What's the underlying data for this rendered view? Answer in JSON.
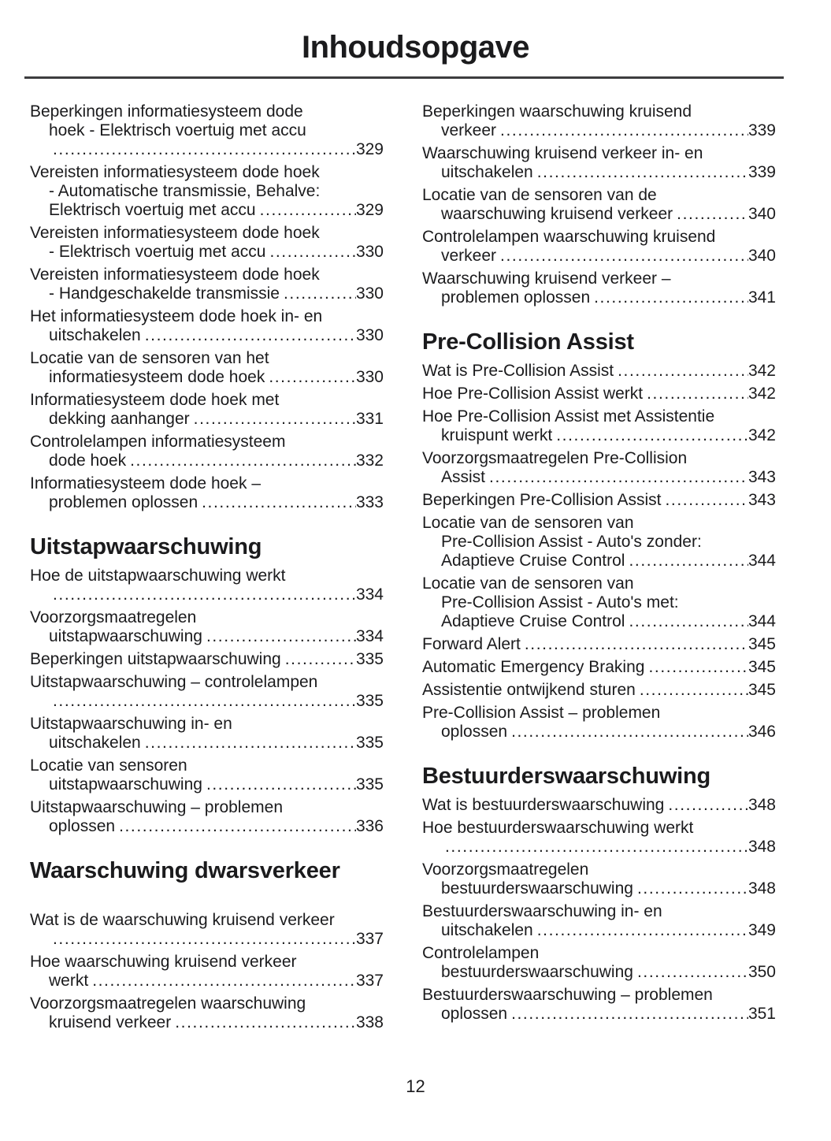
{
  "page": {
    "title": "Inhoudsopgave",
    "page_number": "12",
    "text_color": "#1b1b1d",
    "rule_color": "#3d3d3f"
  },
  "columns": [
    {
      "side": "left",
      "blocks": [
        {
          "type": "entry",
          "pre": [
            "Beperkingen informatiesysteem dode",
            "hoek - Elektrisch voertuig met accu"
          ],
          "last": "",
          "page": "329"
        },
        {
          "type": "entry",
          "pre": [
            "Vereisten informatiesysteem dode hoek",
            "- Automatische transmissie, Behalve:"
          ],
          "last": "Elektrisch voertuig met accu",
          "page": "329"
        },
        {
          "type": "entry",
          "pre": [
            "Vereisten informatiesysteem dode hoek"
          ],
          "last": "- Elektrisch voertuig met accu",
          "page": "330"
        },
        {
          "type": "entry",
          "pre": [
            "Vereisten informatiesysteem dode hoek"
          ],
          "last": "- Handgeschakelde transmissie",
          "page": "330"
        },
        {
          "type": "entry",
          "pre": [
            "Het informatiesysteem dode hoek in- en"
          ],
          "last": "uitschakelen",
          "page": "330"
        },
        {
          "type": "entry",
          "pre": [
            "Locatie van de sensoren van het"
          ],
          "last": "informatiesysteem dode hoek",
          "page": "330"
        },
        {
          "type": "entry",
          "pre": [
            "Informatiesysteem dode hoek met"
          ],
          "last": "dekking aanhanger",
          "page": "331"
        },
        {
          "type": "entry",
          "pre": [
            "Controlelampen informatiesysteem"
          ],
          "last": "dode hoek",
          "page": "332"
        },
        {
          "type": "entry",
          "pre": [
            "Informatiesysteem dode hoek –"
          ],
          "last": "problemen oplossen",
          "page": "333"
        },
        {
          "type": "heading",
          "text": "Uitstapwaarschuwing"
        },
        {
          "type": "entry",
          "pre": [
            "Hoe de uitstapwaarschuwing werkt"
          ],
          "last": "",
          "page": "334"
        },
        {
          "type": "entry",
          "pre": [
            "Voorzorgsmaatregelen"
          ],
          "last": "uitstapwaarschuwing",
          "page": "334"
        },
        {
          "type": "entry",
          "pre": [],
          "last": "Beperkingen uitstapwaarschuwing",
          "page": "335"
        },
        {
          "type": "entry",
          "pre": [
            "Uitstapwaarschuwing – controlelampen"
          ],
          "last": "",
          "page": "335"
        },
        {
          "type": "entry",
          "pre": [
            "Uitstapwaarschuwing in- en"
          ],
          "last": "uitschakelen",
          "page": "335"
        },
        {
          "type": "entry",
          "pre": [
            "Locatie van sensoren"
          ],
          "last": "uitstapwaarschuwing",
          "page": "335"
        },
        {
          "type": "entry",
          "pre": [
            "Uitstapwaarschuwing – problemen"
          ],
          "last": "oplossen",
          "page": "336"
        },
        {
          "type": "heading",
          "text": "Waarschuwing dwarsverkeer",
          "extra_space_after": true
        },
        {
          "type": "entry",
          "pre": [
            "Wat is de waarschuwing kruisend verkeer"
          ],
          "last": "",
          "page": "337"
        },
        {
          "type": "entry",
          "pre": [
            "Hoe waarschuwing kruisend verkeer"
          ],
          "last": "werkt",
          "page": "337"
        },
        {
          "type": "entry",
          "pre": [
            "Voorzorgsmaatregelen waarschuwing"
          ],
          "last": "kruisend verkeer",
          "page": "338"
        }
      ]
    },
    {
      "side": "right",
      "blocks": [
        {
          "type": "entry",
          "pre": [
            "Beperkingen waarschuwing kruisend"
          ],
          "last": "verkeer",
          "page": "339"
        },
        {
          "type": "entry",
          "pre": [
            "Waarschuwing kruisend verkeer in- en"
          ],
          "last": "uitschakelen",
          "page": "339"
        },
        {
          "type": "entry",
          "pre": [
            "Locatie van de sensoren van de"
          ],
          "last": "waarschuwing kruisend verkeer",
          "page": "340"
        },
        {
          "type": "entry",
          "pre": [
            "Controlelampen waarschuwing kruisend"
          ],
          "last": "verkeer",
          "page": "340"
        },
        {
          "type": "entry",
          "pre": [
            "Waarschuwing kruisend verkeer –"
          ],
          "last": "problemen oplossen",
          "page": "341"
        },
        {
          "type": "heading",
          "text": "Pre-Collision Assist"
        },
        {
          "type": "entry",
          "pre": [],
          "last": "Wat is Pre-Collision Assist",
          "page": "342"
        },
        {
          "type": "entry",
          "pre": [],
          "last": "Hoe Pre-Collision Assist werkt",
          "page": "342"
        },
        {
          "type": "entry",
          "pre": [
            "Hoe Pre-Collision Assist met Assistentie"
          ],
          "last": "kruispunt werkt",
          "page": "342"
        },
        {
          "type": "entry",
          "pre": [
            "Voorzorgsmaatregelen Pre-Collision"
          ],
          "last": "Assist",
          "page": "343"
        },
        {
          "type": "entry",
          "pre": [],
          "last": "Beperkingen Pre-Collision Assist",
          "page": "343"
        },
        {
          "type": "entry",
          "pre": [
            "Locatie van de sensoren van",
            "Pre-Collision Assist - Auto's zonder:"
          ],
          "last": "Adaptieve Cruise Control",
          "page": "344"
        },
        {
          "type": "entry",
          "pre": [
            "Locatie van de sensoren van",
            "Pre-Collision Assist - Auto's met:"
          ],
          "last": "Adaptieve Cruise Control",
          "page": "344"
        },
        {
          "type": "entry",
          "pre": [],
          "last": "Forward Alert",
          "page": "345"
        },
        {
          "type": "entry",
          "pre": [],
          "last": "Automatic Emergency Braking",
          "page": "345"
        },
        {
          "type": "entry",
          "pre": [],
          "last": "Assistentie ontwijkend sturen",
          "page": "345"
        },
        {
          "type": "entry",
          "pre": [
            "Pre-Collision Assist – problemen"
          ],
          "last": "oplossen",
          "page": "346"
        },
        {
          "type": "heading",
          "text": "Bestuurderswaarschuwing"
        },
        {
          "type": "entry",
          "pre": [],
          "last": "Wat is bestuurderswaarschuwing",
          "page": "348"
        },
        {
          "type": "entry",
          "pre": [
            "Hoe bestuurderswaarschuwing werkt"
          ],
          "last": "",
          "page": "348"
        },
        {
          "type": "entry",
          "pre": [
            "Voorzorgsmaatregelen"
          ],
          "last": "bestuurderswaarschuwing",
          "page": "348"
        },
        {
          "type": "entry",
          "pre": [
            "Bestuurderswaarschuwing in- en"
          ],
          "last": "uitschakelen",
          "page": "349"
        },
        {
          "type": "entry",
          "pre": [
            "Controlelampen"
          ],
          "last": "bestuurderswaarschuwing",
          "page": "350"
        },
        {
          "type": "entry",
          "pre": [
            "Bestuurderswaarschuwing – problemen"
          ],
          "last": "oplossen",
          "page": "351"
        }
      ]
    }
  ]
}
